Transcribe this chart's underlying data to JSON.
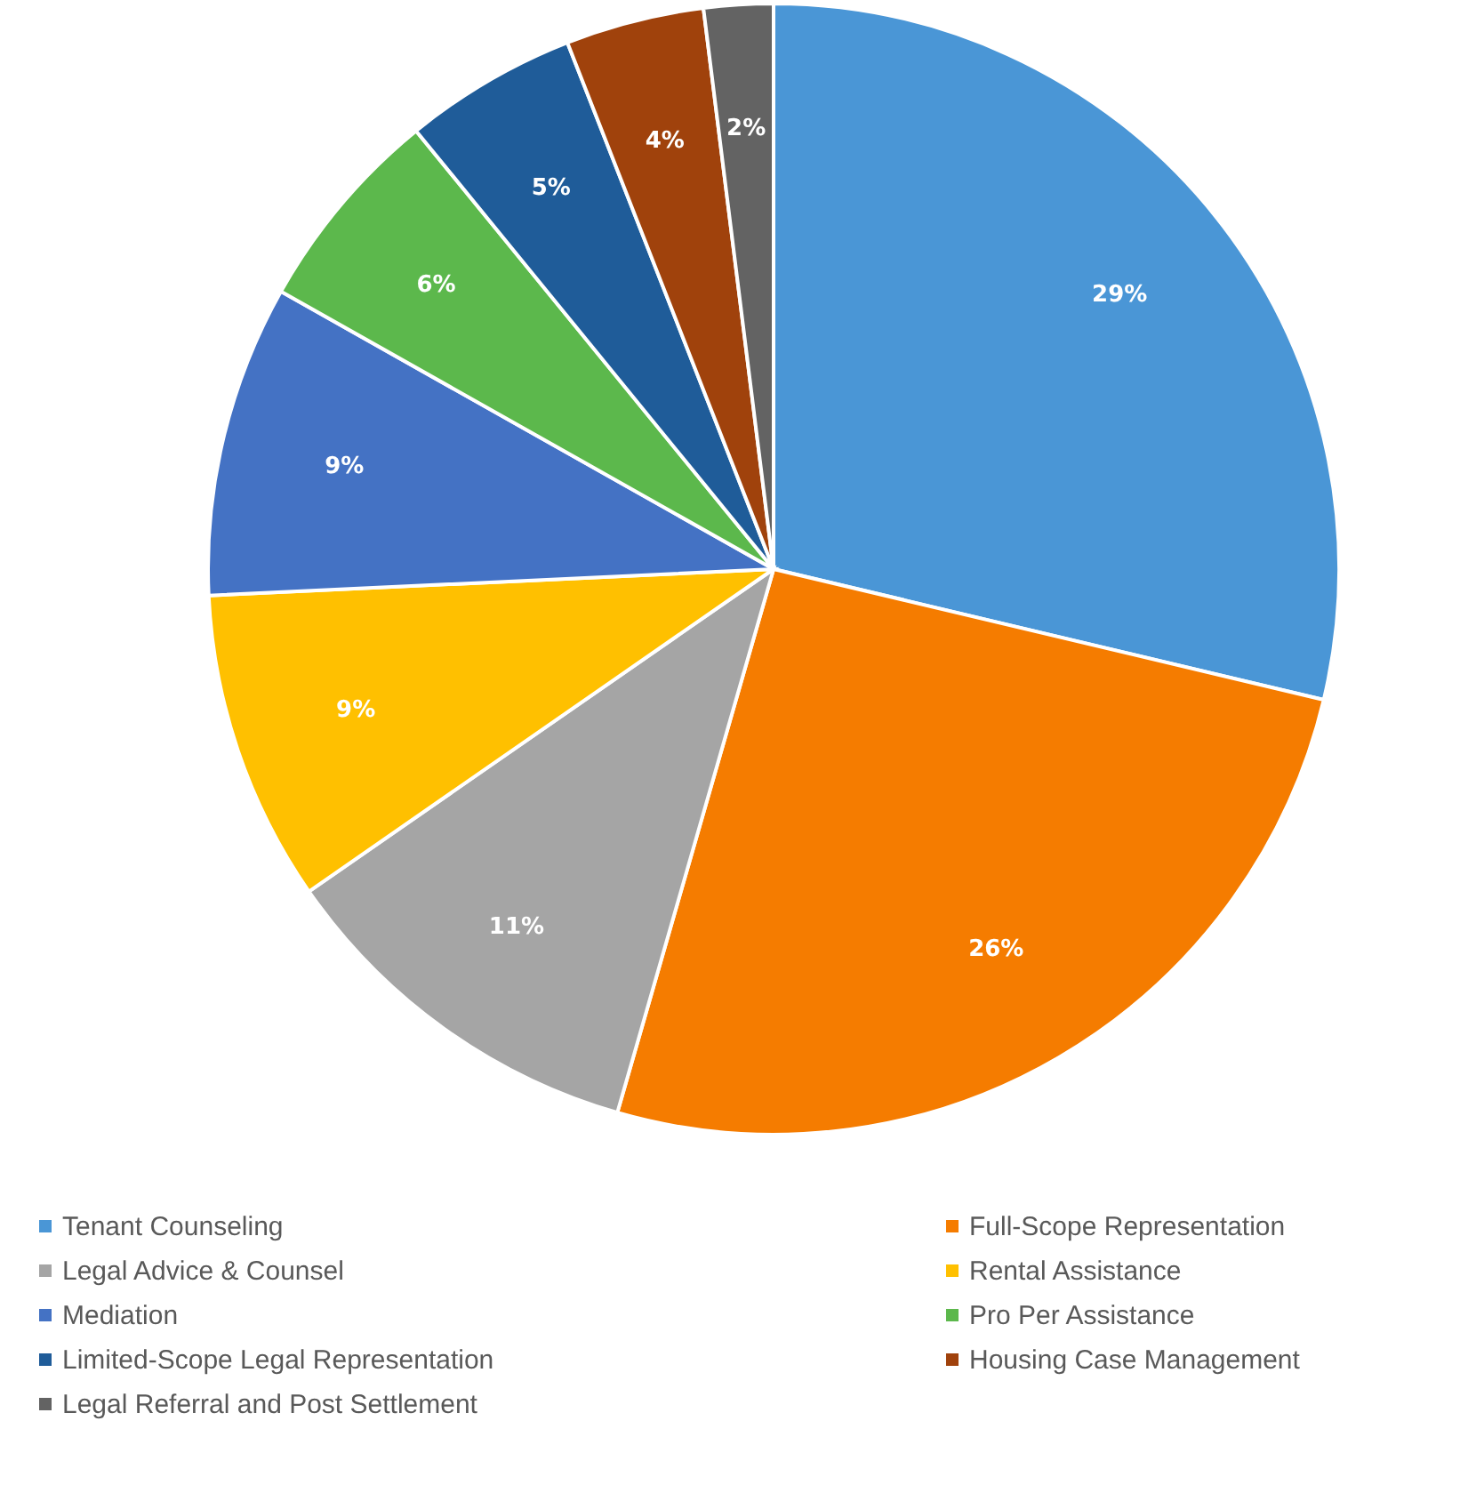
{
  "chart_data": {
    "type": "pie",
    "categories": [
      "Tenant Counseling",
      "Full-Scope Representation",
      "Legal Advice & Counsel",
      "Rental Assistance",
      "Mediation",
      "Pro Per Assistance",
      "Limited-Scope Legal Representation",
      "Housing Case Management",
      "Legal Referral and Post Settlement"
    ],
    "values": [
      29,
      26,
      11,
      9,
      9,
      6,
      5,
      4,
      2
    ],
    "value_labels": [
      "29%",
      "26%",
      "11%",
      "9%",
      "9%",
      "6%",
      "5%",
      "4%",
      "2%"
    ],
    "colors": [
      "#4a96d6",
      "#f57c00",
      "#a5a5a5",
      "#ffc000",
      "#4472c4",
      "#5cb84c",
      "#1f5c99",
      "#a0420c",
      "#636363"
    ],
    "legend": "bottom"
  }
}
